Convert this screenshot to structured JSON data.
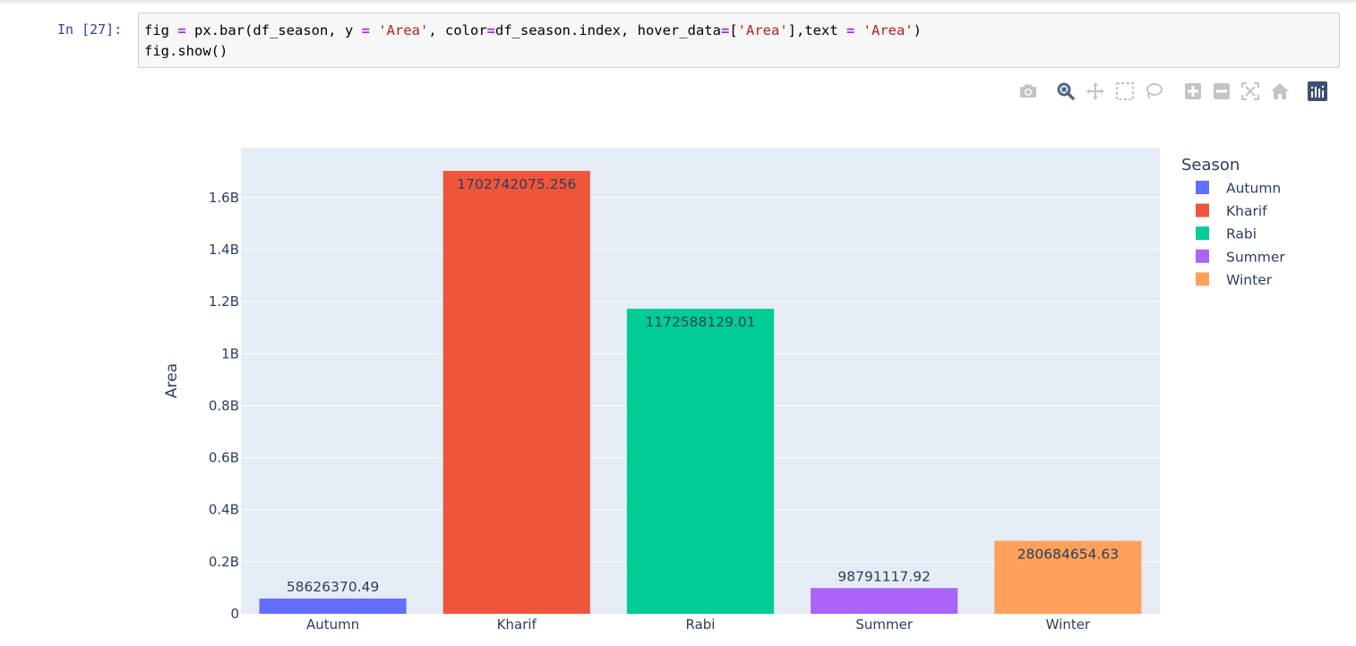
{
  "cell": {
    "prompt": "In [27]:",
    "code_line1": [
      {
        "t": "fig ",
        "c": "plain"
      },
      {
        "t": "=",
        "c": "op"
      },
      {
        "t": " px.bar(df_season, y ",
        "c": "plain"
      },
      {
        "t": "=",
        "c": "op"
      },
      {
        "t": " ",
        "c": "plain"
      },
      {
        "t": "'Area'",
        "c": "str"
      },
      {
        "t": ", color",
        "c": "plain"
      },
      {
        "t": "=",
        "c": "op"
      },
      {
        "t": "df_season.index, hover_data",
        "c": "plain"
      },
      {
        "t": "=",
        "c": "op"
      },
      {
        "t": "[",
        "c": "plain"
      },
      {
        "t": "'Area'",
        "c": "str"
      },
      {
        "t": "],text ",
        "c": "plain"
      },
      {
        "t": "=",
        "c": "op"
      },
      {
        "t": " ",
        "c": "plain"
      },
      {
        "t": "'Area'",
        "c": "str"
      },
      {
        "t": ")",
        "c": "plain"
      }
    ],
    "code_line2": "fig.show()"
  },
  "modebar": {
    "buttons": [
      {
        "icon": "camera-icon"
      },
      {
        "icon": "zoom-icon"
      },
      {
        "icon": "pan-icon"
      },
      {
        "icon": "box-select-icon"
      },
      {
        "icon": "lasso-select-icon"
      },
      {
        "icon": "zoom-in-icon"
      },
      {
        "icon": "zoom-out-icon"
      },
      {
        "icon": "autoscale-icon"
      },
      {
        "icon": "reset-axes-icon"
      },
      {
        "icon": "plotly-logo-icon"
      }
    ]
  },
  "chart_data": {
    "type": "bar",
    "categories": [
      "Autumn",
      "Kharif",
      "Rabi",
      "Summer",
      "Winter"
    ],
    "values": [
      58626370.49,
      1702742075.256,
      1172588129.01,
      98791117.92,
      280684654.63
    ],
    "value_labels": [
      "58626370.49",
      "1702742075.256",
      "1172588129.01",
      "98791117.92",
      "280684654.63"
    ],
    "colors": [
      "#636efa",
      "#EF553B",
      "#00cc96",
      "#ab63fa",
      "#FFA15A"
    ],
    "ylabel": "Area",
    "xlabel": "",
    "ylim": [
      0,
      1792360079.2
    ],
    "yticks": [
      0,
      200000000,
      400000000,
      600000000,
      800000000,
      1000000000,
      1200000000,
      1400000000,
      1600000000
    ],
    "ytick_labels": [
      "0",
      "0.2B",
      "0.4B",
      "0.6B",
      "0.8B",
      "1B",
      "1.2B",
      "1.4B",
      "1.6B"
    ],
    "legend_title": "Season",
    "legend_position": "top-right",
    "grid": true,
    "plot_background": "#e5ecf6",
    "grid_color": "#ffffff"
  }
}
